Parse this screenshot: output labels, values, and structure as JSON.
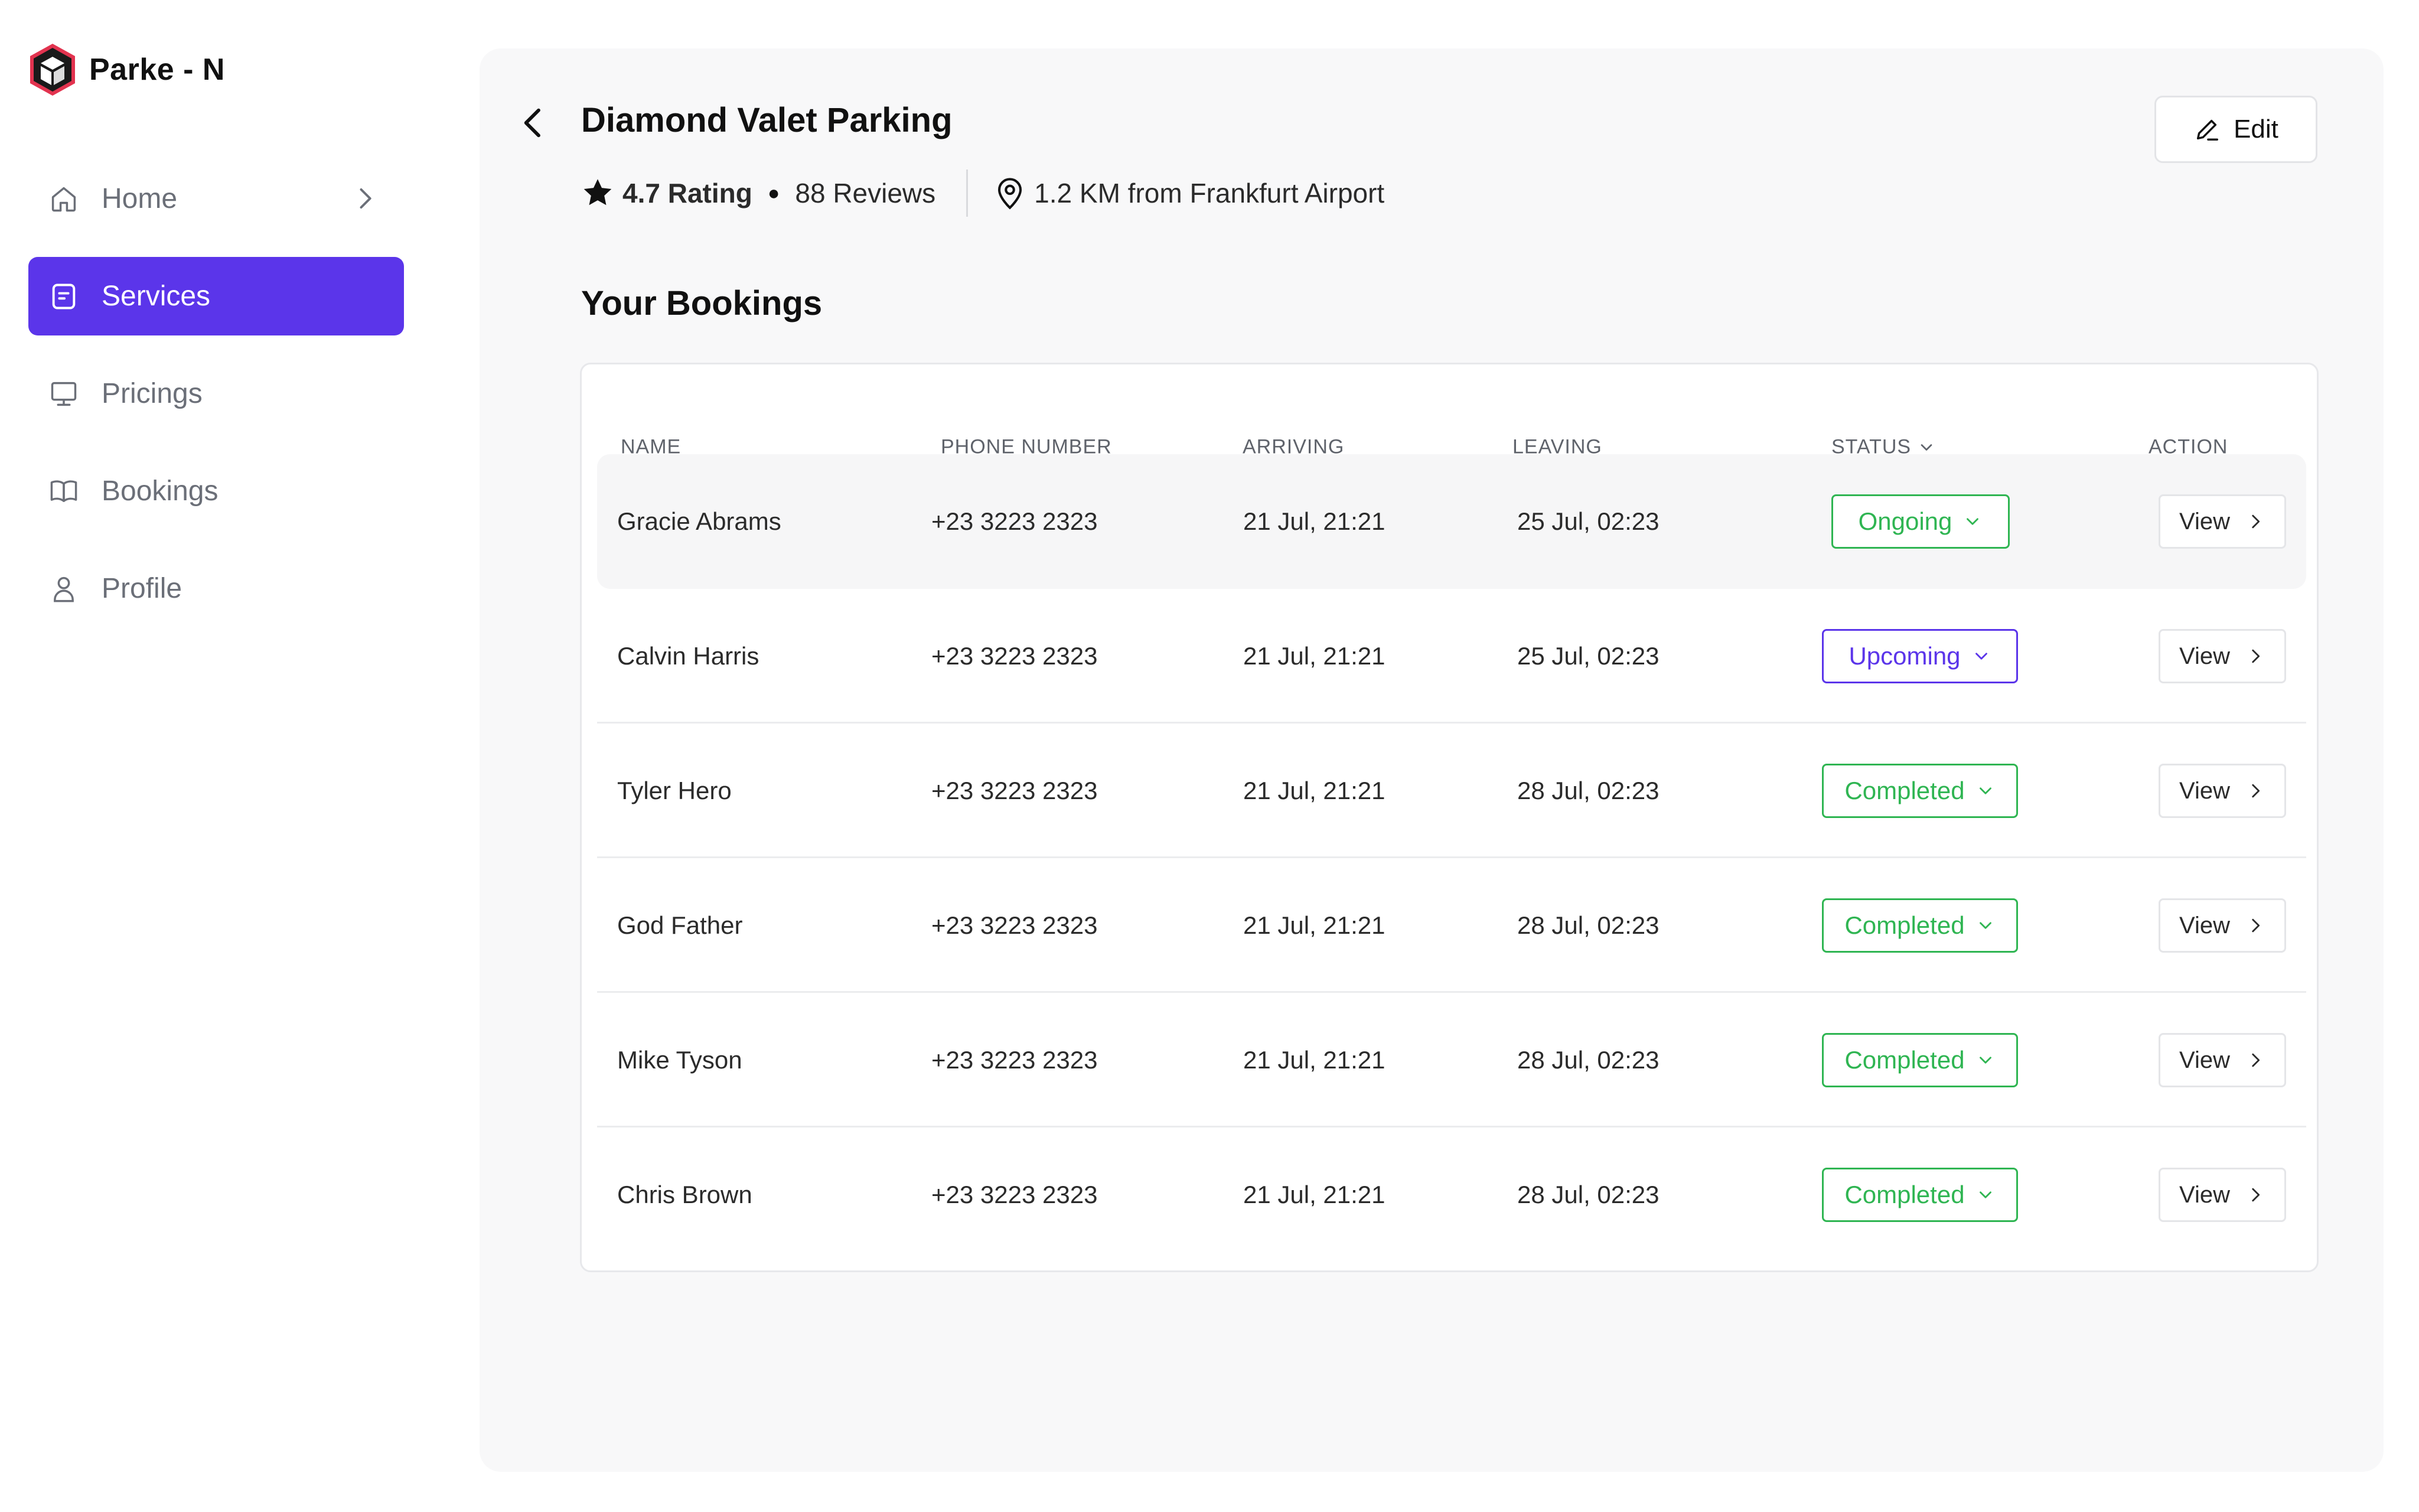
{
  "app": {
    "brand_name": "Parke - N"
  },
  "sidebar": {
    "items": [
      {
        "label": "Home",
        "icon": "home-icon",
        "active": false,
        "has_chevron": true
      },
      {
        "label": "Services",
        "icon": "document-icon",
        "active": true,
        "has_chevron": false
      },
      {
        "label": "Pricings",
        "icon": "monitor-icon",
        "active": false,
        "has_chevron": false
      },
      {
        "label": "Bookings",
        "icon": "book-icon",
        "active": false,
        "has_chevron": false
      },
      {
        "label": "Profile",
        "icon": "user-icon",
        "active": false,
        "has_chevron": false
      }
    ]
  },
  "header": {
    "title": "Diamond Valet Parking",
    "rating": "4.7 Rating",
    "reviews": "88 Reviews",
    "distance": "1.2 KM from Frankfurt Airport",
    "edit_label": "Edit"
  },
  "bookings": {
    "section_title": "Your Bookings",
    "columns": {
      "name": "NAME",
      "phone": "PHONE NUMBER",
      "arriving": "ARRIVING",
      "leaving": "LEAVING",
      "status": "STATUS",
      "action": "ACTION"
    },
    "view_label": "View",
    "rows": [
      {
        "name": "Gracie Abrams",
        "phone": "+23 3223 2323",
        "arriving": "21 Jul, 21:21",
        "leaving": "25 Jul, 02:23",
        "status": "Ongoing"
      },
      {
        "name": "Calvin Harris",
        "phone": "+23 3223 2323",
        "arriving": "21 Jul, 21:21",
        "leaving": "25 Jul, 02:23",
        "status": "Upcoming"
      },
      {
        "name": "Tyler Hero",
        "phone": "+23 3223 2323",
        "arriving": "21 Jul, 21:21",
        "leaving": "28 Jul, 02:23",
        "status": "Completed"
      },
      {
        "name": "God Father",
        "phone": "+23 3223 2323",
        "arriving": "21 Jul, 21:21",
        "leaving": "28 Jul, 02:23",
        "status": "Completed"
      },
      {
        "name": "Mike Tyson",
        "phone": "+23 3223 2323",
        "arriving": "21 Jul, 21:21",
        "leaving": "28 Jul, 02:23",
        "status": "Completed"
      },
      {
        "name": "Chris Brown",
        "phone": "+23 3223 2323",
        "arriving": "21 Jul, 21:21",
        "leaving": "28 Jul, 02:23",
        "status": "Completed"
      }
    ]
  },
  "colors": {
    "accent": "#5b35ea",
    "status_green": "#2fb552",
    "panel_bg": "#f8f8f9"
  }
}
